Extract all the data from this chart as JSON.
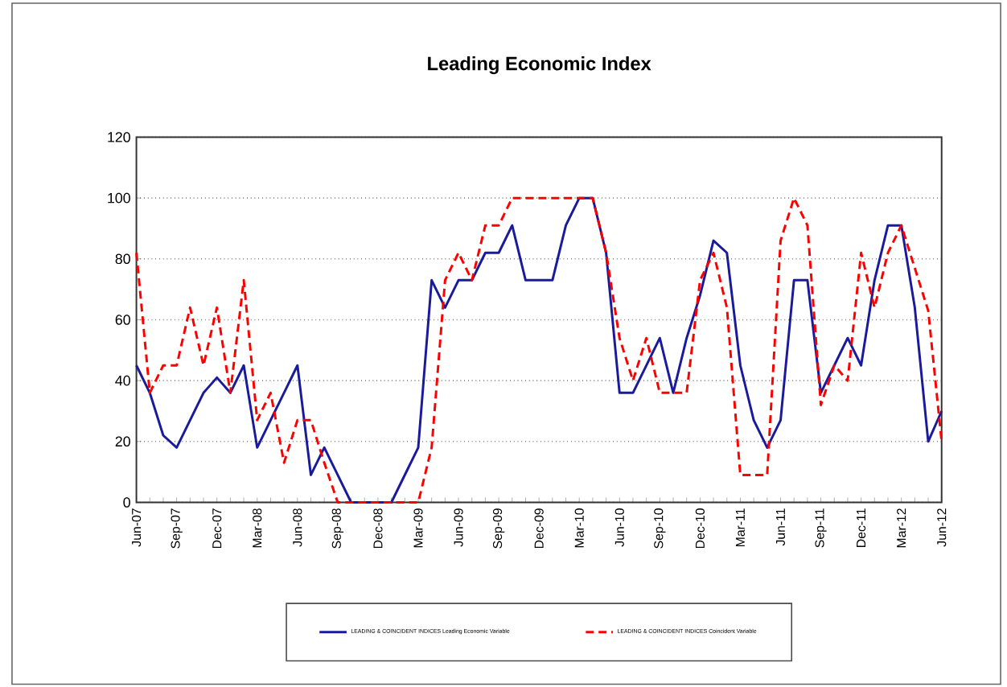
{
  "chart_data": {
    "type": "line",
    "title": "Leading Economic Index",
    "categories": [
      "Jun-07",
      null,
      null,
      "Sep-07",
      null,
      null,
      "Dec-07",
      null,
      null,
      "Mar-08",
      null,
      null,
      "Jun-08",
      null,
      null,
      "Sep-08",
      null,
      null,
      "Dec-08",
      null,
      null,
      "Mar-09",
      null,
      null,
      "Jun-09",
      null,
      null,
      "Sep-09",
      null,
      null,
      "Dec-09",
      null,
      null,
      "Mar-10",
      null,
      null,
      "Jun-10",
      null,
      null,
      "Sep-10",
      null,
      null,
      "Dec-10",
      null,
      null,
      "Mar-11",
      null,
      null,
      "Jun-11",
      null,
      null,
      "Sep-11",
      null,
      null,
      "Dec-11",
      null,
      null,
      "Mar-12",
      null,
      null,
      "Jun-12"
    ],
    "series": [
      {
        "name": "LEADING & COINCIDENT INDICES Leading Economic Variable",
        "color": "#1a1a9c",
        "line_style": "solid",
        "values": [
          45,
          36,
          22,
          18,
          27,
          36,
          41,
          36,
          45,
          18,
          27,
          36,
          45,
          9,
          18,
          9,
          0,
          0,
          0,
          0,
          9,
          18,
          73,
          64,
          73,
          73,
          82,
          82,
          91,
          73,
          73,
          73,
          91,
          100,
          100,
          82,
          36,
          36,
          45,
          54,
          36,
          54,
          68,
          86,
          82,
          45,
          27,
          18,
          27,
          73,
          73,
          36,
          45,
          54,
          45,
          73,
          91,
          91,
          64,
          20,
          30
        ]
      },
      {
        "name": "LEADING & COINCIDENT INDICES Coincident Variable",
        "color": "#ff0000",
        "line_style": "dashed",
        "values": [
          82,
          36,
          45,
          45,
          64,
          45,
          64,
          36,
          73,
          27,
          36,
          13,
          27,
          27,
          13,
          0,
          0,
          0,
          0,
          0,
          0,
          0,
          18,
          73,
          82,
          73,
          91,
          91,
          100,
          100,
          100,
          100,
          100,
          100,
          100,
          82,
          54,
          40,
          54,
          36,
          36,
          36,
          73,
          82,
          64,
          9,
          9,
          9,
          86,
          100,
          91,
          32,
          45,
          40,
          82,
          64,
          82,
          91,
          77,
          63,
          20
        ]
      }
    ],
    "ylim": [
      0,
      120
    ],
    "yticks": [
      0,
      20,
      40,
      60,
      80,
      100,
      120
    ],
    "grid": "y",
    "legend": "bottom",
    "marker": "none"
  }
}
